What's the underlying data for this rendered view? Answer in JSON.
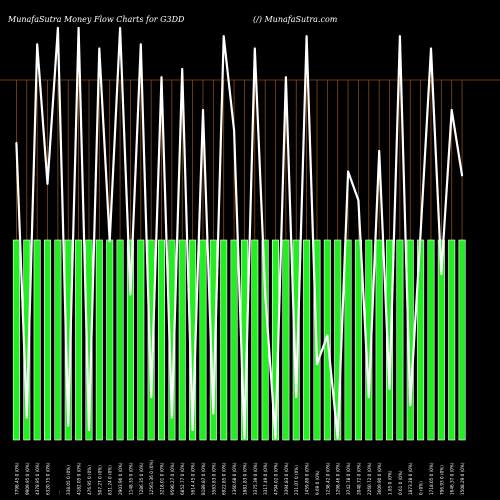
{
  "header": {
    "title": "MunafaSutra  Money Flow  Charts for G3DD",
    "site": "(/) MunafaSutra.com"
  },
  "colors": {
    "background": "#000000",
    "bar": "#22ee22",
    "bar_edge": "#ffffff",
    "grid": "#8a4a10",
    "line": "#ffffff",
    "text": "#ffffff"
  },
  "chart_data": {
    "type": "bar",
    "title": "MunafaSutra  Money Flow  Charts for G3DD",
    "xlabel": "",
    "ylabel": "",
    "ylim": [
      0,
      100
    ],
    "grid": true,
    "categories": [
      "7798.45 0 (0%)",
      "9909.95 0 (0%)",
      "4378.95 0 (0%)",
      "6320.75 0 (0%)",
      "...",
      "338.05 0 (0%)",
      "4182.05 0 (0%)",
      "476.95 0 (0%)",
      "507.27 0 (0%)",
      "831.24 0 (0%)",
      "2903.96 0 (0%)",
      "1148.35 0 (0%)",
      "7286.35 0 (0%)",
      "12561.36 0 (0%)",
      "3218.01 0 (0%)",
      "9590.27 0 (0%)",
      "6852.77 0 (0%)",
      "5614.45 0 (0%)",
      "8189.87 0 (0%)",
      "3583.83 0 (0%)",
      "6922.85 0 (0%)",
      "1360.68 0 (0%)",
      "1881.83 0 (0%)",
      "3375.39 0 (0%)",
      "3317.49 0 (0%)",
      "4794.02 0 (0%)",
      "3394.83 0 (0%)",
      "231.07 0 (0%)",
      "1459.89 0 (0%)",
      "9.69 0 (0%)",
      "1238.42 0 (0%)",
      "1298.46 0 (0%)",
      "3742.78 0 (0%)",
      "2048.72 0 (0%)",
      "2260.72 0 (0%)",
      "3609.90 0 (0%)",
      "1.85 0 (0%)",
      "0.61 0 (0%)",
      "1873.28 0 (0%)",
      "0 (0%)",
      "1718.05 0 (0%)",
      "796.93 0 (0%)",
      "1646.37 0 (0%)",
      "1508.29 0 (0%)"
    ],
    "series": [
      {
        "type": "bar",
        "values": [
          50,
          50,
          50,
          50,
          50,
          50,
          50,
          50,
          50,
          50,
          50,
          50,
          50,
          50,
          50,
          50,
          50,
          50,
          50,
          50,
          50,
          50,
          50,
          50,
          50,
          50,
          50,
          50,
          50,
          50,
          50,
          50,
          50,
          50,
          50,
          50,
          50,
          50,
          50,
          50,
          50,
          50,
          50,
          50
        ]
      },
      {
        "type": "line",
        "values": [
          72,
          5,
          96,
          62,
          100,
          3,
          100,
          2,
          95,
          48,
          100,
          35,
          96,
          10,
          88,
          5,
          90,
          2,
          80,
          6,
          98,
          75,
          0,
          95,
          35,
          0,
          88,
          10,
          98,
          18,
          25,
          0,
          65,
          58,
          10,
          70,
          12,
          98,
          8,
          50,
          95,
          40,
          80,
          64
        ]
      }
    ]
  }
}
